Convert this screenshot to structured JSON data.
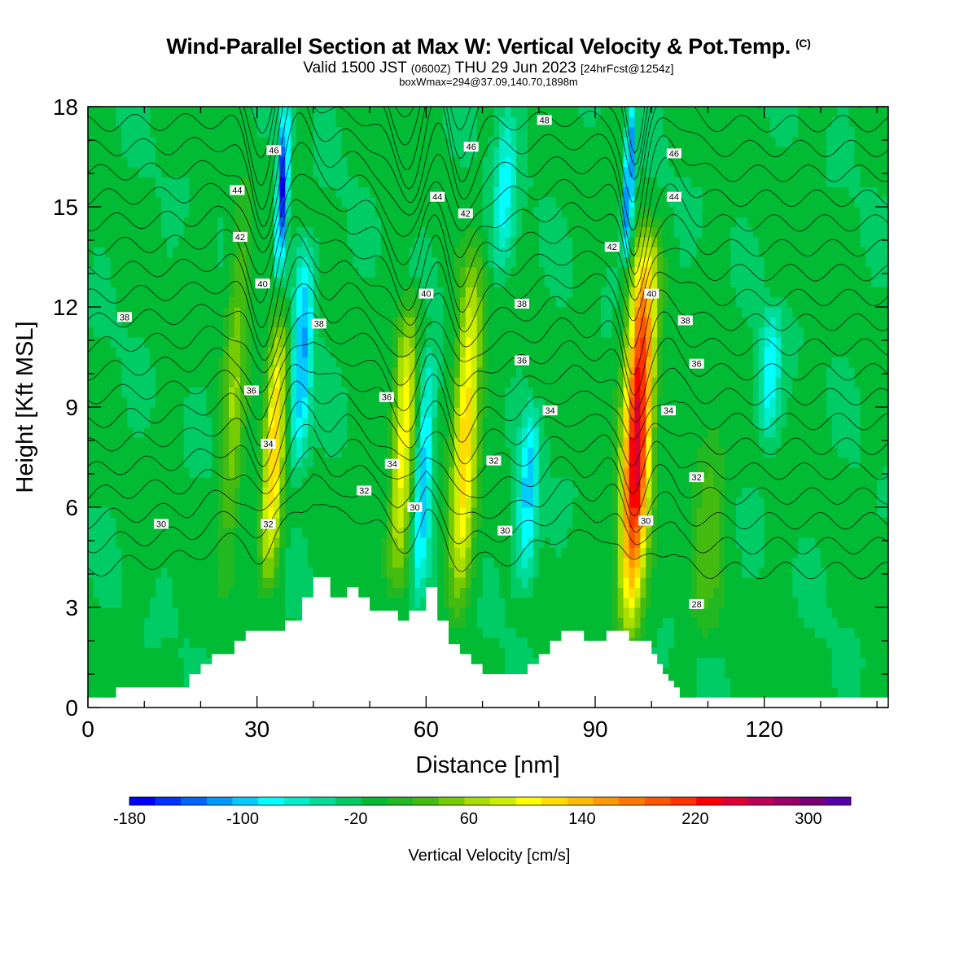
{
  "title": {
    "main": "Wind-Parallel Section at Max W: Vertical Velocity & Pot.Temp.",
    "mark": "(C)",
    "valid_prefix": "Valid 1500 JST",
    "valid_utc": "(0600Z)",
    "valid_date": "THU 29 Jun 2023",
    "forecast": "[24hrFcst@1254z]",
    "box": "boxWmax=294@37.09,140.70,1898m"
  },
  "chart_data": {
    "type": "heatmap",
    "xlabel": "Distance [nm]",
    "ylabel": "Height [Kft MSL]",
    "xlim": [
      0,
      142
    ],
    "ylim": [
      0,
      18
    ],
    "x_ticks": [
      "0",
      "30",
      "60",
      "90",
      "120"
    ],
    "y_ticks": [
      "0",
      "3",
      "6",
      "9",
      "12",
      "15",
      "18"
    ],
    "colorbar": {
      "label": "Vertical Velocity [cm/s]",
      "min": -180,
      "max": 330,
      "step": 20,
      "tick_labels": [
        "-180",
        "-100",
        "-20",
        "60",
        "140",
        "220",
        "300"
      ],
      "colors": [
        "#0000ff",
        "#0033ff",
        "#0066ff",
        "#0099ff",
        "#00ccff",
        "#00ffff",
        "#00eecc",
        "#00dd99",
        "#00cc66",
        "#00bb33",
        "#22b822",
        "#44bb11",
        "#77cc00",
        "#aadd00",
        "#ccee00",
        "#ffff00",
        "#ffdd00",
        "#ffbb00",
        "#ff9900",
        "#ff7700",
        "#ff5500",
        "#ff3300",
        "#ff0000",
        "#dd0033",
        "#bb0055",
        "#990066",
        "#770077",
        "#5500aa"
      ]
    },
    "terrain_kft": {
      "x": [
        0,
        5,
        18,
        20,
        22,
        26,
        28,
        35,
        38,
        40,
        43,
        46,
        48,
        50,
        55,
        57,
        60,
        62,
        64,
        66,
        68,
        70,
        72,
        74,
        76,
        78,
        80,
        82,
        84,
        86,
        88,
        90,
        92,
        94,
        96,
        98,
        100,
        101,
        102,
        103,
        104,
        105,
        106,
        142
      ],
      "y": [
        0.3,
        0.6,
        1.0,
        1.3,
        1.6,
        2.0,
        2.3,
        2.6,
        3.3,
        3.9,
        3.3,
        3.6,
        3.3,
        2.9,
        2.6,
        2.9,
        3.6,
        2.6,
        1.9,
        1.6,
        1.3,
        1.0,
        1.0,
        1.0,
        1.0,
        1.3,
        1.6,
        2.0,
        2.3,
        2.3,
        2.0,
        2.0,
        2.3,
        2.3,
        2.0,
        2.0,
        1.6,
        1.3,
        1.0,
        0.8,
        0.6,
        0.3,
        0.3,
        0.3
      ]
    },
    "updrafts": [
      {
        "x": 33,
        "y0": 3.5,
        "y1": 12,
        "peak": 160,
        "width": 1.8
      },
      {
        "x": 56,
        "y0": 3.5,
        "y1": 12.5,
        "peak": 130,
        "width": 2.0
      },
      {
        "x": 67,
        "y0": 2.5,
        "y1": 14.0,
        "peak": 150,
        "width": 2.2
      },
      {
        "x": 97.5,
        "y0": 2.0,
        "y1": 14.5,
        "peak": 294,
        "width": 2.4
      },
      {
        "x": 26,
        "y0": 3.0,
        "y1": 16.0,
        "peak": 70,
        "width": 2.0
      },
      {
        "x": 110,
        "y0": 2.0,
        "y1": 9.0,
        "peak": 50,
        "width": 3.0
      }
    ],
    "downdrafts": [
      {
        "x": 34.5,
        "y0": 13.0,
        "y1": 18,
        "peak": -170,
        "width": 0.9
      },
      {
        "x": 38,
        "y0": 7.0,
        "y1": 14.0,
        "peak": -110,
        "width": 1.8
      },
      {
        "x": 59.5,
        "y0": 3.0,
        "y1": 11.0,
        "peak": -100,
        "width": 1.6
      },
      {
        "x": 78,
        "y0": 3.5,
        "y1": 9.0,
        "peak": -95,
        "width": 1.8
      },
      {
        "x": 96,
        "y0": 13.5,
        "y1": 18,
        "peak": -150,
        "width": 0.8
      },
      {
        "x": 121,
        "y0": 8.0,
        "y1": 12.0,
        "peak": -80,
        "width": 1.8
      },
      {
        "x": 74,
        "y0": 13.0,
        "y1": 18,
        "peak": -70,
        "width": 2.0
      }
    ],
    "theta_contours": {
      "levels": [
        28,
        29,
        30,
        31,
        32,
        33,
        34,
        35,
        36,
        37,
        38,
        39,
        40,
        41,
        42,
        43,
        44,
        45,
        46,
        47,
        48,
        49
      ],
      "labels": [
        {
          "text": "48",
          "x": 81,
          "y": 17.6
        },
        {
          "text": "46",
          "x": 33,
          "y": 16.7
        },
        {
          "text": "46",
          "x": 68,
          "y": 16.8
        },
        {
          "text": "46",
          "x": 104,
          "y": 16.6
        },
        {
          "text": "44",
          "x": 26.5,
          "y": 15.5
        },
        {
          "text": "44",
          "x": 62,
          "y": 15.3
        },
        {
          "text": "44",
          "x": 104,
          "y": 15.3
        },
        {
          "text": "42",
          "x": 27,
          "y": 14.1
        },
        {
          "text": "42",
          "x": 67,
          "y": 14.8
        },
        {
          "text": "42",
          "x": 93,
          "y": 13.8
        },
        {
          "text": "40",
          "x": 31,
          "y": 12.7
        },
        {
          "text": "40",
          "x": 60,
          "y": 12.4
        },
        {
          "text": "40",
          "x": 100,
          "y": 12.4
        },
        {
          "text": "38",
          "x": 6.5,
          "y": 11.7
        },
        {
          "text": "38",
          "x": 41,
          "y": 11.5
        },
        {
          "text": "38",
          "x": 77,
          "y": 12.1
        },
        {
          "text": "38",
          "x": 106,
          "y": 11.6
        },
        {
          "text": "36",
          "x": 29,
          "y": 9.5
        },
        {
          "text": "36",
          "x": 53,
          "y": 9.3
        },
        {
          "text": "36",
          "x": 77,
          "y": 10.4
        },
        {
          "text": "36",
          "x": 108,
          "y": 10.3
        },
        {
          "text": "34",
          "x": 32,
          "y": 7.9
        },
        {
          "text": "34",
          "x": 54,
          "y": 7.3
        },
        {
          "text": "34",
          "x": 82,
          "y": 8.9
        },
        {
          "text": "34",
          "x": 103,
          "y": 8.9
        },
        {
          "text": "32",
          "x": 32,
          "y": 5.5
        },
        {
          "text": "32",
          "x": 49,
          "y": 6.5
        },
        {
          "text": "32",
          "x": 72,
          "y": 7.4
        },
        {
          "text": "32",
          "x": 108,
          "y": 6.9
        },
        {
          "text": "30",
          "x": 13,
          "y": 5.5
        },
        {
          "text": "30",
          "x": 58,
          "y": 6.0
        },
        {
          "text": "30",
          "x": 74,
          "y": 5.3
        },
        {
          "text": "30",
          "x": 99,
          "y": 5.6
        },
        {
          "text": "28",
          "x": 108,
          "y": 3.1
        }
      ]
    }
  }
}
